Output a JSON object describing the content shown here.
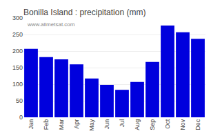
{
  "chart_data": {
    "type": "bar",
    "title": "Bonilla Island : precipitation (mm)",
    "categories": [
      "Jan",
      "Feb",
      "Mar",
      "Apr",
      "May",
      "Jun",
      "Jul",
      "Aug",
      "Sep",
      "Oct",
      "Nov",
      "Dec"
    ],
    "values": [
      207,
      182,
      175,
      160,
      117,
      98,
      83,
      107,
      167,
      277,
      257,
      237
    ],
    "color": "#0000dd",
    "ylim": [
      0,
      300
    ],
    "yticks": [
      0,
      50,
      100,
      150,
      200,
      250,
      300
    ],
    "grid": true,
    "annotations": [
      "www.allmetsat.com"
    ]
  }
}
